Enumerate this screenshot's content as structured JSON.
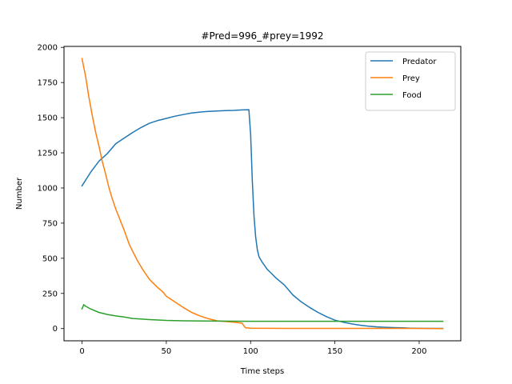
{
  "chart_data": {
    "type": "line",
    "title": "#Pred=996_#prey=1992",
    "xlabel": "Time steps",
    "ylabel": "Number",
    "xlim": [
      -10.7,
      224.7
    ],
    "ylim": [
      -87,
      2007
    ],
    "xticks": [
      0,
      50,
      100,
      150,
      200
    ],
    "yticks": [
      0,
      250,
      500,
      750,
      1000,
      1250,
      1500,
      1750,
      2000
    ],
    "grid": false,
    "legend_position": "top-right",
    "series": [
      {
        "name": "Predator",
        "color": "#1f77b4",
        "x": [
          0,
          5,
          10,
          15,
          20,
          25,
          30,
          35,
          40,
          45,
          50,
          55,
          60,
          65,
          70,
          75,
          80,
          85,
          90,
          95,
          99,
          100,
          101,
          102,
          103,
          104,
          105,
          107,
          110,
          115,
          120,
          125,
          130,
          135,
          140,
          145,
          150,
          155,
          160,
          165,
          170,
          175,
          180,
          185,
          190,
          195,
          200,
          205,
          210,
          214
        ],
        "y": [
          1015,
          1110,
          1190,
          1245,
          1315,
          1355,
          1395,
          1430,
          1460,
          1480,
          1495,
          1510,
          1522,
          1533,
          1540,
          1545,
          1548,
          1550,
          1552,
          1555,
          1557,
          1380,
          1050,
          800,
          650,
          560,
          510,
          470,
          420,
          360,
          310,
          240,
          190,
          150,
          115,
          85,
          60,
          45,
          33,
          24,
          17,
          12,
          9,
          7,
          5,
          3,
          2,
          1,
          1,
          1
        ]
      },
      {
        "name": "Prey",
        "color": "#ff7f0e",
        "x": [
          0,
          2,
          4,
          6,
          8,
          10,
          12,
          14,
          16,
          18,
          20,
          22,
          25,
          28,
          30,
          33,
          36,
          40,
          45,
          48,
          50,
          55,
          60,
          65,
          70,
          75,
          80,
          85,
          90,
          95,
          96,
          97,
          100,
          110,
          120,
          150,
          200,
          214
        ],
        "y": [
          1920,
          1800,
          1650,
          1520,
          1400,
          1300,
          1190,
          1100,
          1000,
          920,
          850,
          790,
          700,
          600,
          550,
          480,
          420,
          350,
          290,
          260,
          230,
          190,
          150,
          115,
          90,
          70,
          55,
          50,
          45,
          38,
          20,
          5,
          3,
          2,
          1,
          1,
          1,
          0
        ]
      },
      {
        "name": "Food",
        "color": "#2ca02c",
        "x": [
          0,
          1,
          2,
          5,
          10,
          15,
          20,
          25,
          30,
          35,
          40,
          50,
          60,
          80,
          100,
          150,
          200,
          214
        ],
        "y": [
          140,
          170,
          160,
          140,
          115,
          100,
          90,
          82,
          72,
          68,
          64,
          58,
          55,
          53,
          52,
          52,
          52,
          52
        ]
      }
    ]
  }
}
